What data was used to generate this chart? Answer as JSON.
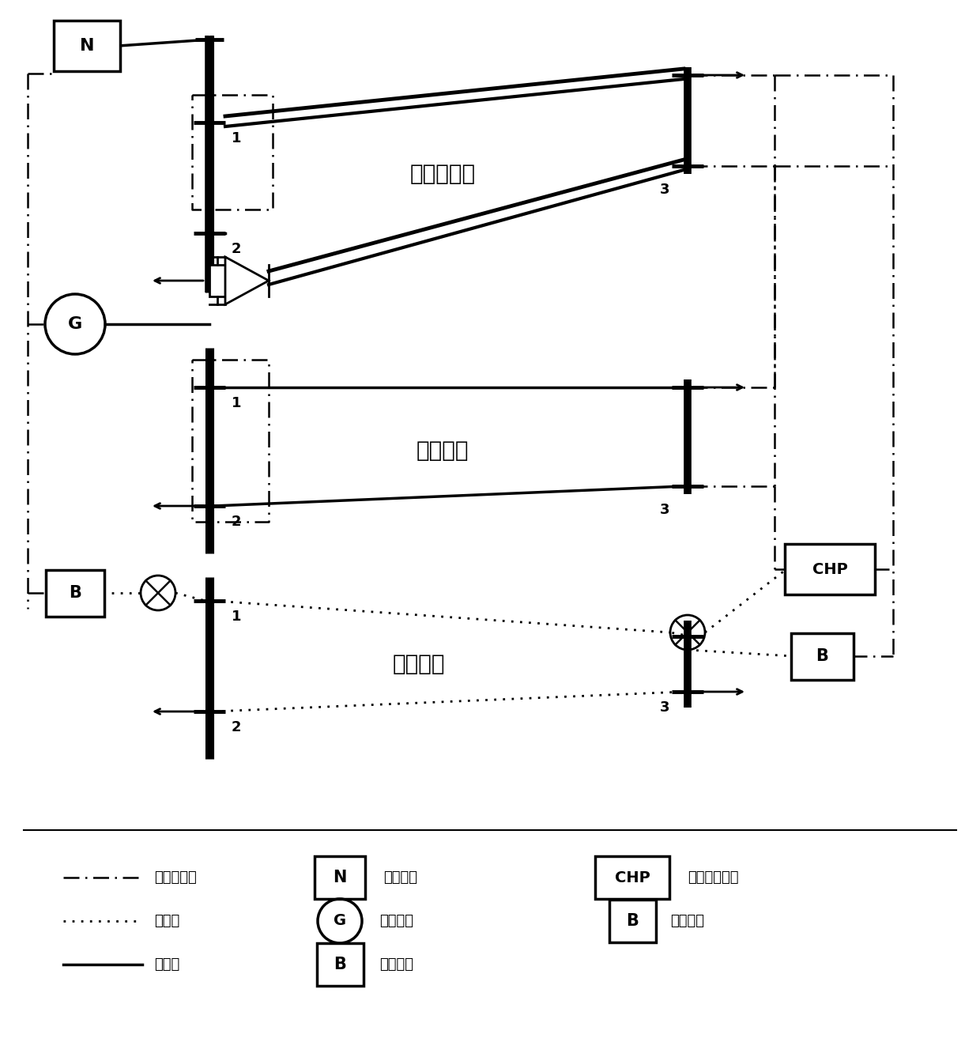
{
  "bg_color": "#ffffff",
  "label_gas_network": "天然气网络",
  "label_power_network": "电力网络",
  "label_heat_network": "热力网络",
  "label_N": "N",
  "label_G": "G",
  "label_B": "B",
  "label_CHP": "CHP",
  "legend_gas_energy": "天然气能量",
  "legend_heat_energy": "热能量",
  "legend_elec_energy": "电能量",
  "legend_N_desc": "外部电网",
  "legend_G_desc": "燃气轮机",
  "legend_B_desc": "燃气锅炉",
  "legend_CHP_desc": "热电联产机组",
  "node1_label": "1",
  "node2_label": "2",
  "node3_label": "3"
}
